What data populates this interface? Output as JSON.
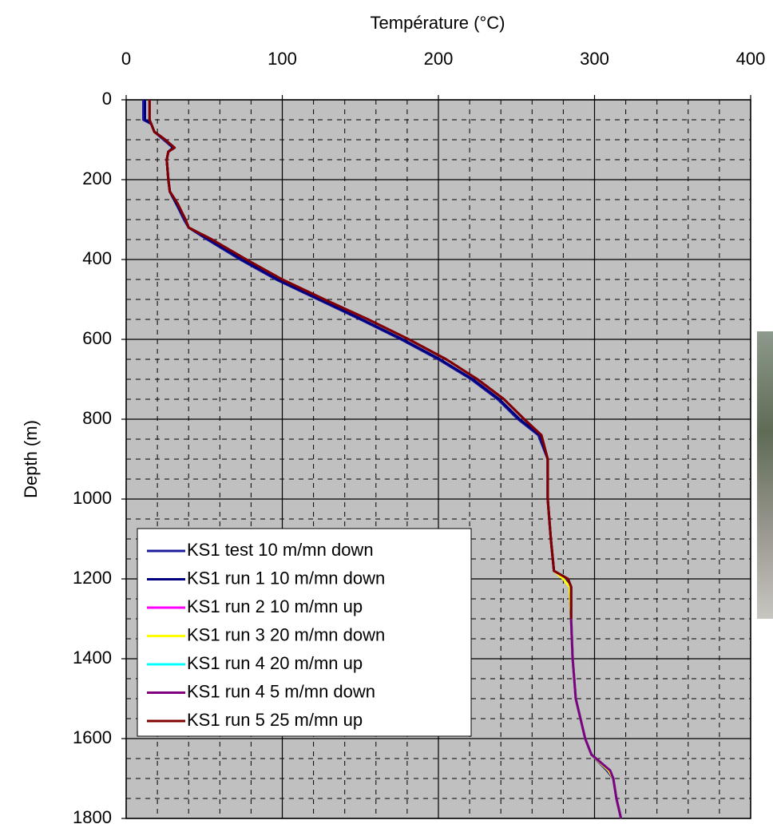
{
  "chart_data": {
    "type": "line",
    "title": "Température (°C)",
    "y_label": "Depth (m)",
    "xlim": [
      0,
      400
    ],
    "xticks": [
      0,
      100,
      200,
      300,
      400
    ],
    "ylim": [
      0,
      1800
    ],
    "yticks": [
      0,
      200,
      400,
      600,
      800,
      1000,
      1200,
      1400,
      1600,
      1800
    ],
    "y_inverted": true,
    "x_axis_position": "top",
    "grid": true,
    "legend": "lower-left",
    "depth": [
      0,
      50,
      60,
      80,
      100,
      120,
      130,
      150,
      200,
      230,
      260,
      300,
      320,
      350,
      400,
      450,
      500,
      550,
      600,
      650,
      700,
      750,
      800,
      840,
      900,
      1000,
      1100,
      1180,
      1200,
      1220,
      1300,
      1400,
      1500,
      1600,
      1640,
      1680,
      1700,
      1750,
      1800
    ],
    "series": [
      {
        "name": "KS1 test 10 m/mn down",
        "color": "#1c1c9c",
        "values": [
          11,
          11,
          16,
          18,
          24,
          30,
          27,
          26,
          27,
          28,
          32,
          37,
          40,
          52,
          73,
          96,
          123,
          150,
          176,
          200,
          221,
          238,
          251,
          264,
          270,
          270,
          272,
          274,
          282,
          284,
          285,
          286,
          288,
          294,
          298,
          308,
          312,
          314,
          317
        ]
      },
      {
        "name": "KS1 run 1 10 m/mn down",
        "color": "#000080",
        "values": [
          12,
          12,
          16,
          18,
          25,
          30,
          27,
          26,
          27,
          28,
          32,
          38,
          40,
          53,
          74,
          97,
          124,
          151,
          177,
          201,
          222,
          239,
          252,
          265,
          270,
          270,
          272,
          274,
          283,
          285,
          285,
          286,
          288,
          294,
          298,
          309,
          312,
          314,
          317
        ]
      },
      {
        "name": "KS1 run 2 10 m/mn up",
        "color": "#ff00ff",
        "values": [
          null,
          null,
          null,
          null,
          null,
          null,
          null,
          null,
          null,
          null,
          null,
          null,
          null,
          null,
          null,
          null,
          null,
          null,
          null,
          null,
          null,
          null,
          null,
          null,
          null,
          null,
          null,
          null,
          283,
          285,
          285,
          286,
          288,
          294,
          298,
          310,
          312,
          314,
          317
        ]
      },
      {
        "name": "KS1 run 3 20 m/mn down",
        "color": "#ffff00",
        "values": [
          null,
          null,
          null,
          null,
          null,
          null,
          null,
          null,
          null,
          null,
          null,
          null,
          null,
          null,
          null,
          null,
          null,
          null,
          null,
          null,
          null,
          null,
          null,
          null,
          null,
          null,
          null,
          274,
          280,
          284,
          285,
          286,
          288,
          294,
          298,
          309,
          312,
          314,
          317
        ]
      },
      {
        "name": "KS1 run 4 20 m/mn up",
        "color": "#00ffff",
        "values": [
          null,
          null,
          null,
          null,
          null,
          null,
          null,
          null,
          null,
          null,
          null,
          null,
          null,
          null,
          null,
          null,
          null,
          null,
          null,
          null,
          null,
          null,
          null,
          null,
          null,
          null,
          null,
          null,
          283,
          285,
          285,
          286,
          288,
          294,
          298,
          310,
          312,
          314,
          317
        ]
      },
      {
        "name": "KS1 run 4 5 m/mn down",
        "color": "#800080",
        "values": [
          15,
          15,
          16,
          18,
          25,
          31,
          27,
          26,
          27,
          28,
          33,
          38,
          40,
          55,
          77,
          100,
          127,
          155,
          181,
          205,
          225,
          242,
          255,
          266,
          270,
          270,
          272,
          274,
          283,
          285,
          285,
          286,
          288,
          294,
          298,
          310,
          312,
          314,
          317
        ]
      },
      {
        "name": "KS1 run 5 25 m/mn up",
        "color": "#800000",
        "values": [
          15,
          15,
          16,
          18,
          25,
          31,
          27,
          26,
          27,
          28,
          33,
          38,
          40,
          55,
          77,
          100,
          127,
          155,
          181,
          205,
          225,
          242,
          255,
          266,
          270,
          270,
          272,
          274,
          283,
          285,
          285,
          null,
          null,
          null,
          null,
          null,
          null,
          null,
          null
        ]
      }
    ]
  }
}
